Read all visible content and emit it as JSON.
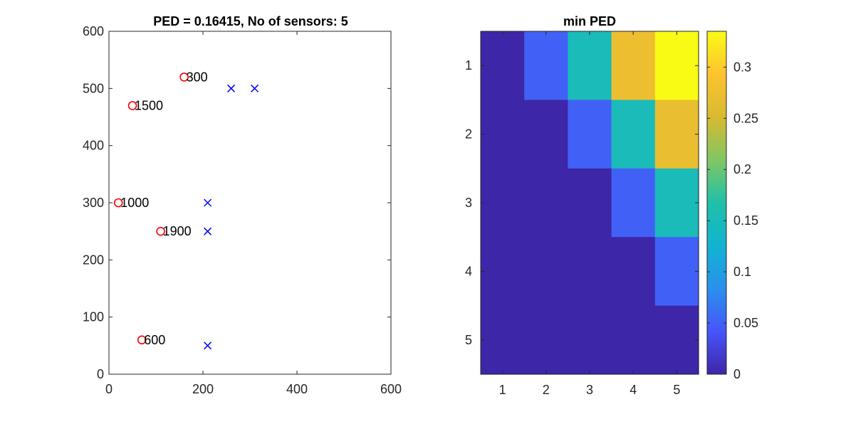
{
  "chart_data": [
    {
      "type": "scatter",
      "title": "PED = 0.16415, No of sensors: 5",
      "xlim": [
        0,
        600
      ],
      "ylim": [
        0,
        600
      ],
      "xticks": [
        0,
        200,
        400,
        600
      ],
      "yticks": [
        0,
        100,
        200,
        300,
        400,
        500,
        600
      ],
      "grid": false,
      "series": [
        {
          "marker": "circle",
          "color": "#ff0000",
          "points": [
            {
              "x": 160,
              "y": 520,
              "label": "300"
            },
            {
              "x": 50,
              "y": 470,
              "label": "1500"
            },
            {
              "x": 20,
              "y": 300,
              "label": "1000"
            },
            {
              "x": 110,
              "y": 250,
              "label": "1900"
            },
            {
              "x": 70,
              "y": 60,
              "label": "600"
            }
          ]
        },
        {
          "marker": "x",
          "color": "#0000ff",
          "points": [
            {
              "x": 260,
              "y": 500
            },
            {
              "x": 310,
              "y": 500
            },
            {
              "x": 210,
              "y": 300
            },
            {
              "x": 210,
              "y": 250
            },
            {
              "x": 210,
              "y": 50
            }
          ]
        }
      ]
    },
    {
      "type": "heatmap",
      "title": "min PED",
      "x": [
        1,
        2,
        3,
        4,
        5
      ],
      "y": [
        1,
        2,
        3,
        4,
        5
      ],
      "values": [
        [
          0,
          0.05,
          0.15,
          0.275,
          0.335
        ],
        [
          0,
          0,
          0.05,
          0.15,
          0.27
        ],
        [
          0,
          0,
          0,
          0.05,
          0.15
        ],
        [
          0,
          0,
          0,
          0,
          0.05
        ],
        [
          0,
          0,
          0,
          0,
          0
        ]
      ],
      "colorbar": {
        "limits": [
          0,
          0.335
        ],
        "ticks": [
          0,
          0.05,
          0.1,
          0.15,
          0.2,
          0.25,
          0.3
        ],
        "tick_labels": [
          "0",
          "0.05",
          "0.1",
          "0.15",
          "0.2",
          "0.25",
          "0.3"
        ],
        "colormap": "parula"
      }
    }
  ]
}
